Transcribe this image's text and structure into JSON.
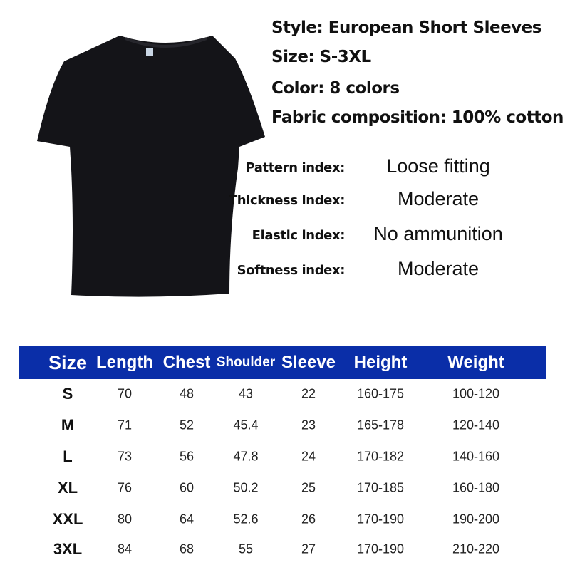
{
  "specs": [
    "Style: European Short Sleeves",
    "Size: S-3XL",
    "Color: 8 colors",
    "Fabric composition: 100% cotton"
  ],
  "indices": [
    {
      "label": "Pattern index:",
      "value": "Loose fitting"
    },
    {
      "label": "Thickness index:",
      "value": "Moderate"
    },
    {
      "label": "Elastic index:",
      "value": "No ammunition"
    },
    {
      "label": "Softness index:",
      "value": "Moderate"
    }
  ],
  "product_image": {
    "subject": "black t-shirt",
    "color": "#141418"
  },
  "table": {
    "header_color": "#0a2ea8",
    "columns": [
      "Size",
      "Length",
      "Chest",
      "Shoulder",
      "Sleeve",
      "Height",
      "Weight"
    ],
    "rows": [
      [
        "S",
        "70",
        "48",
        "43",
        "22",
        "160-175",
        "100-120"
      ],
      [
        "M",
        "71",
        "52",
        "45.4",
        "23",
        "165-178",
        "120-140"
      ],
      [
        "L",
        "73",
        "56",
        "47.8",
        "24",
        "170-182",
        "140-160"
      ],
      [
        "XL",
        "76",
        "60",
        "50.2",
        "25",
        "170-185",
        "160-180"
      ],
      [
        "XXL",
        "80",
        "64",
        "52.6",
        "26",
        "170-190",
        "190-200"
      ],
      [
        "3XL",
        "84",
        "68",
        "55",
        "27",
        "170-190",
        "210-220"
      ]
    ]
  }
}
